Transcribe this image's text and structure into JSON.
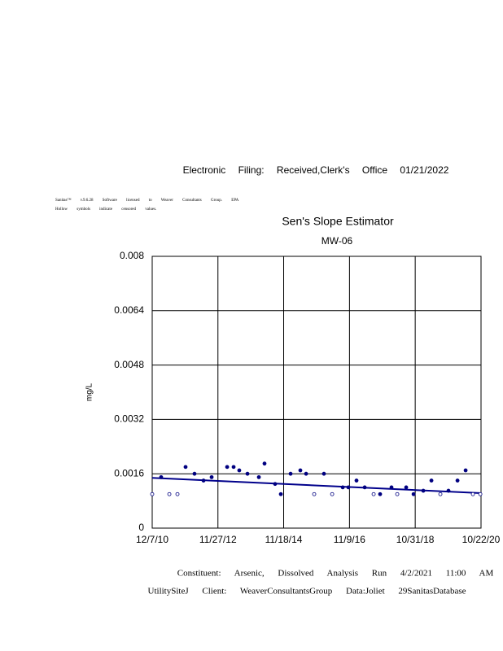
{
  "header": "Electronic Filing: Received,Clerk's Office 01/21/2022",
  "notes": [
    "Sanitas™ v.9.6.28 Software licensed to Weaver Consultants Group. EPA",
    "Hollow symbols indicate censored values."
  ],
  "footer": [
    "Constituent: Arsenic, Dissolved Analysis Run 4/2/2021 11:00 AM",
    "UtilitySiteJ Client: WeaverConsultantsGroup Data:Joliet 29SanitasDatabase"
  ],
  "chart_data": {
    "type": "scatter",
    "title": "Sen's Slope Estimator",
    "subtitle": "MW-06",
    "y_label": "mg/L",
    "x": [
      "2010-12-07",
      "2011-03-15",
      "2011-06-13",
      "2011-09-10",
      "2011-12-08",
      "2012-03-15",
      "2012-06-22",
      "2012-09-19",
      "2013-03-08",
      "2013-05-18",
      "2013-07-19",
      "2013-10-17",
      "2014-02-19",
      "2014-04-22",
      "2014-08-16",
      "2014-10-18",
      "2015-02-02",
      "2015-05-20",
      "2015-07-22",
      "2015-10-19",
      "2016-02-03",
      "2016-05-03",
      "2016-08-27",
      "2016-10-28",
      "2017-01-25",
      "2017-04-25",
      "2017-08-01",
      "2017-10-11",
      "2018-02-13",
      "2018-04-17",
      "2018-07-24",
      "2018-10-13",
      "2019-01-28",
      "2019-04-27",
      "2019-08-03",
      "2019-10-31",
      "2020-02-07",
      "2020-05-06",
      "2020-07-25",
      "2020-10-14"
    ],
    "values": [
      0.001,
      0.0015,
      0.001,
      0.001,
      0.0018,
      0.0016,
      0.0014,
      0.0015,
      0.0018,
      0.0018,
      0.0017,
      0.0016,
      0.0015,
      0.0019,
      0.0013,
      0.001,
      0.0016,
      0.0017,
      0.0016,
      0.001,
      0.0016,
      0.001,
      0.0012,
      0.0012,
      0.0014,
      0.0012,
      0.001,
      0.001,
      0.0012,
      0.001,
      0.0012,
      0.001,
      0.0011,
      0.0014,
      0.001,
      0.0011,
      0.0014,
      0.0017,
      0.001,
      0.001
    ],
    "censored": [
      true,
      false,
      true,
      true,
      false,
      false,
      false,
      false,
      false,
      false,
      false,
      false,
      false,
      false,
      false,
      false,
      false,
      false,
      false,
      true,
      false,
      true,
      false,
      false,
      false,
      false,
      true,
      false,
      false,
      true,
      false,
      false,
      false,
      false,
      true,
      false,
      false,
      false,
      true,
      true
    ],
    "color": "#000080",
    "trend": {
      "x": [
        "2010-12-07",
        "2020-10-22"
      ],
      "values": [
        0.00148,
        0.00103
      ],
      "color": "#00008b"
    },
    "xlim": [
      "2010-12-07",
      "2020-10-22"
    ],
    "xticks": [
      {
        "value": "2010-12-07",
        "label": "12/7/10"
      },
      {
        "value": "2012-11-27",
        "label": "11/27/12"
      },
      {
        "value": "2014-11-18",
        "label": "11/18/14"
      },
      {
        "value": "2016-11-09",
        "label": "11/9/16"
      },
      {
        "value": "2018-10-31",
        "label": "10/31/18"
      },
      {
        "value": "2020-10-22",
        "label": "10/22/20"
      }
    ],
    "ylim": [
      0,
      0.008
    ],
    "yticks": [
      0,
      0.0016,
      0.0032,
      0.0048,
      0.0064,
      0.008
    ],
    "grid": true
  }
}
